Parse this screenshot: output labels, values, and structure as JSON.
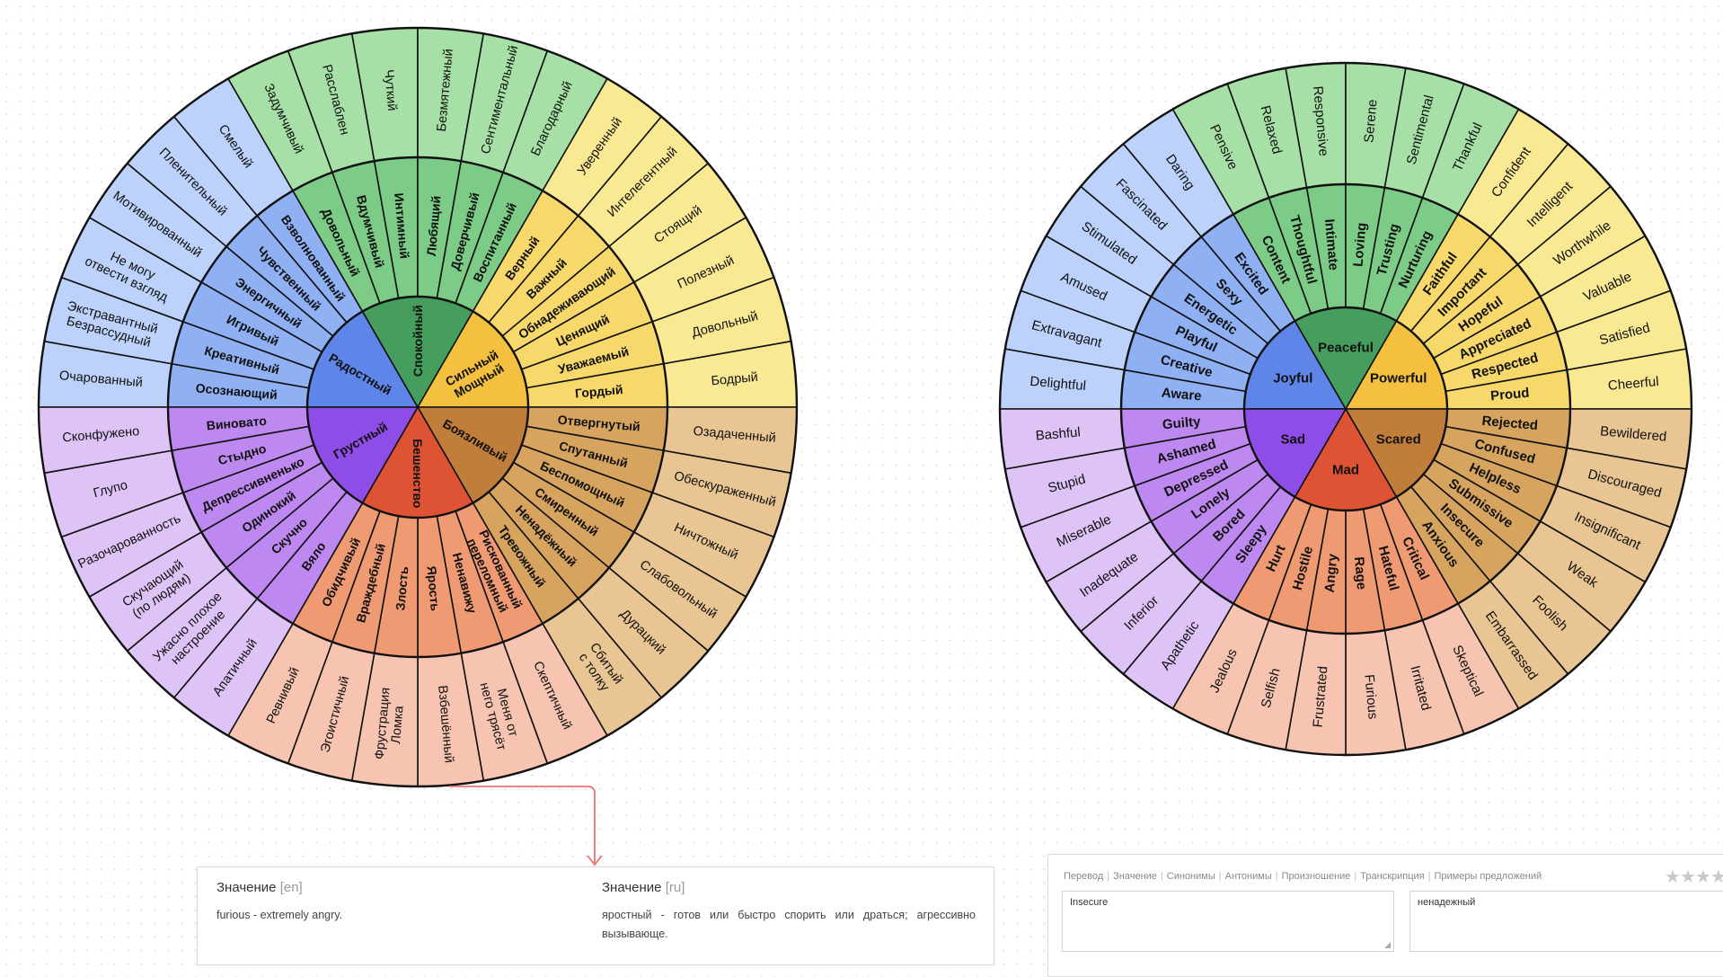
{
  "colors": {
    "Joyful": [
      "#5d86e8",
      "#8fb0f3",
      "#bcd2fa"
    ],
    "Peaceful": [
      "#459e5e",
      "#7ccb87",
      "#a6e0a6"
    ],
    "Powerful": [
      "#f3c040",
      "#f7d86a",
      "#fae993"
    ],
    "Scared": [
      "#c17e3b",
      "#d6a45f",
      "#e8c592"
    ],
    "Mad": [
      "#dd5334",
      "#ef9a73",
      "#f6c4b1"
    ],
    "Sad": [
      "#8f4de8",
      "#bd88ef",
      "#dec4f6"
    ]
  },
  "wheels": [
    {
      "id": "ru",
      "cores": [
        {
          "key": "Joyful",
          "label": "Радостный"
        },
        {
          "key": "Peaceful",
          "label": "Спокойный"
        },
        {
          "key": "Powerful",
          "label": "Сильный Мощный"
        },
        {
          "key": "Scared",
          "label": "Боязливый"
        },
        {
          "key": "Mad",
          "label": "Бешенство"
        },
        {
          "key": "Sad",
          "label": "Грустный"
        }
      ],
      "segments": [
        {
          "key": "Joyful",
          "mid": "Осознающий",
          "outer": "Очарованный"
        },
        {
          "key": "Joyful",
          "mid": "Креативный",
          "outer": "Экстравантный Безрассудный"
        },
        {
          "key": "Joyful",
          "mid": "Игривый",
          "outer": "Не могу отвести взгляд"
        },
        {
          "key": "Joyful",
          "mid": "Энергичный",
          "outer": "Мотивированный"
        },
        {
          "key": "Joyful",
          "mid": "Чувственный",
          "outer": "Пленительный"
        },
        {
          "key": "Joyful",
          "mid": "Взволнованный",
          "outer": "Смелый"
        },
        {
          "key": "Peaceful",
          "mid": "Довольный",
          "outer": "Задумчивый"
        },
        {
          "key": "Peaceful",
          "mid": "Вдумчивый",
          "outer": "Расслаблен"
        },
        {
          "key": "Peaceful",
          "mid": "Интимный",
          "outer": "Чуткий"
        },
        {
          "key": "Peaceful",
          "mid": "Любящий",
          "outer": "Безмятежный"
        },
        {
          "key": "Peaceful",
          "mid": "Доверчивый",
          "outer": "Сентиментальный"
        },
        {
          "key": "Peaceful",
          "mid": "Воспитанный",
          "outer": "Благодарный"
        },
        {
          "key": "Powerful",
          "mid": "Верный",
          "outer": "Уверенный"
        },
        {
          "key": "Powerful",
          "mid": "Важный",
          "outer": "Интелегентный"
        },
        {
          "key": "Powerful",
          "mid": "Обнадеживающий",
          "outer": "Стоящий"
        },
        {
          "key": "Powerful",
          "mid": "Ценящий",
          "outer": "Полезный"
        },
        {
          "key": "Powerful",
          "mid": "Уважаемый",
          "outer": "Довольный"
        },
        {
          "key": "Powerful",
          "mid": "Гордый",
          "outer": "Бодрый"
        },
        {
          "key": "Scared",
          "mid": "Отвергнутый",
          "outer": "Озадаченный"
        },
        {
          "key": "Scared",
          "mid": "Спутанный",
          "outer": "Обескураженный"
        },
        {
          "key": "Scared",
          "mid": "Беспомощный",
          "outer": "Ничтожный"
        },
        {
          "key": "Scared",
          "mid": "Смиренный",
          "outer": "Слабовольный"
        },
        {
          "key": "Scared",
          "mid": "Ненадёжный",
          "outer": "Дурацкий"
        },
        {
          "key": "Scared",
          "mid": "Тревожный",
          "outer": "Сбитый с толку"
        },
        {
          "key": "Mad",
          "mid": "Рискованный переломный",
          "outer": "Скептичный"
        },
        {
          "key": "Mad",
          "mid": "Ненавижу",
          "outer": "Меня от него трясёт"
        },
        {
          "key": "Mad",
          "mid": "Ярость",
          "outer": "Взбешённый"
        },
        {
          "key": "Mad",
          "mid": "Злость",
          "outer": "Фрустрация Ломка"
        },
        {
          "key": "Mad",
          "mid": "Враждебный",
          "outer": "Эгоистичный"
        },
        {
          "key": "Mad",
          "mid": "Обидчивый",
          "outer": "Ревнивый"
        },
        {
          "key": "Sad",
          "mid": "Вяло",
          "outer": "Апатичный"
        },
        {
          "key": "Sad",
          "mid": "Скучно",
          "outer": "Ужасно плохое настроение"
        },
        {
          "key": "Sad",
          "mid": "Одинокий",
          "outer": "Скучающий (по людям)"
        },
        {
          "key": "Sad",
          "mid": "Депрессивненько",
          "outer": "Разочарованность"
        },
        {
          "key": "Sad",
          "mid": "Стыдно",
          "outer": "Глупо"
        },
        {
          "key": "Sad",
          "mid": "Виновато",
          "outer": "Сконфужено"
        }
      ]
    },
    {
      "id": "en",
      "cores": [
        {
          "key": "Joyful",
          "label": "Joyful"
        },
        {
          "key": "Peaceful",
          "label": "Peaceful"
        },
        {
          "key": "Powerful",
          "label": "Powerful"
        },
        {
          "key": "Scared",
          "label": "Scared"
        },
        {
          "key": "Mad",
          "label": "Mad"
        },
        {
          "key": "Sad",
          "label": "Sad"
        }
      ],
      "segments": [
        {
          "key": "Joyful",
          "mid": "Aware",
          "outer": "Delightful"
        },
        {
          "key": "Joyful",
          "mid": "Creative",
          "outer": "Extravagant"
        },
        {
          "key": "Joyful",
          "mid": "Playful",
          "outer": "Amused"
        },
        {
          "key": "Joyful",
          "mid": "Energetic",
          "outer": "Stimulated"
        },
        {
          "key": "Joyful",
          "mid": "Sexy",
          "outer": "Fascinated"
        },
        {
          "key": "Joyful",
          "mid": "Excited",
          "outer": "Daring"
        },
        {
          "key": "Peaceful",
          "mid": "Content",
          "outer": "Pensive"
        },
        {
          "key": "Peaceful",
          "mid": "Thoughtful",
          "outer": "Relaxed"
        },
        {
          "key": "Peaceful",
          "mid": "Intimate",
          "outer": "Responsive"
        },
        {
          "key": "Peaceful",
          "mid": "Loving",
          "outer": "Serene"
        },
        {
          "key": "Peaceful",
          "mid": "Trusting",
          "outer": "Sentimental"
        },
        {
          "key": "Peaceful",
          "mid": "Nurturing",
          "outer": "Thankful"
        },
        {
          "key": "Powerful",
          "mid": "Faithful",
          "outer": "Confident"
        },
        {
          "key": "Powerful",
          "mid": "Important",
          "outer": "Intelligent"
        },
        {
          "key": "Powerful",
          "mid": "Hopeful",
          "outer": "Worthwhile"
        },
        {
          "key": "Powerful",
          "mid": "Appreciated",
          "outer": "Valuable"
        },
        {
          "key": "Powerful",
          "mid": "Respected",
          "outer": "Satisfied"
        },
        {
          "key": "Powerful",
          "mid": "Proud",
          "outer": "Cheerful"
        },
        {
          "key": "Scared",
          "mid": "Rejected",
          "outer": "Bewildered"
        },
        {
          "key": "Scared",
          "mid": "Confused",
          "outer": "Discouraged"
        },
        {
          "key": "Scared",
          "mid": "Helpless",
          "outer": "Insignificant"
        },
        {
          "key": "Scared",
          "mid": "Submissive",
          "outer": "Weak"
        },
        {
          "key": "Scared",
          "mid": "Insecure",
          "outer": "Foolish"
        },
        {
          "key": "Scared",
          "mid": "Anxious",
          "outer": "Embarrassed"
        },
        {
          "key": "Mad",
          "mid": "Critical",
          "outer": "Skeptical"
        },
        {
          "key": "Mad",
          "mid": "Hateful",
          "outer": "Irritated"
        },
        {
          "key": "Mad",
          "mid": "Rage",
          "outer": "Furious"
        },
        {
          "key": "Mad",
          "mid": "Angry",
          "outer": "Frustrated"
        },
        {
          "key": "Mad",
          "mid": "Hostile",
          "outer": "Selfish"
        },
        {
          "key": "Mad",
          "mid": "Hurt",
          "outer": "Jealous"
        },
        {
          "key": "Sad",
          "mid": "Sleepy",
          "outer": "Apathetic"
        },
        {
          "key": "Sad",
          "mid": "Bored",
          "outer": "Inferior"
        },
        {
          "key": "Sad",
          "mid": "Lonely",
          "outer": "Inadequate"
        },
        {
          "key": "Sad",
          "mid": "Depressed",
          "outer": "Miserable"
        },
        {
          "key": "Sad",
          "mid": "Ashamed",
          "outer": "Stupid"
        },
        {
          "key": "Sad",
          "mid": "Guilty",
          "outer": "Bashful"
        }
      ]
    }
  ],
  "meaning": {
    "en_title": "Значение",
    "en_lang": "[en]",
    "en_text": "furious - extremely angry.",
    "ru_title": "Значение",
    "ru_lang": "[ru]",
    "ru_text": "яростный - готов или быстро спорить или драться; агрессивно вызывающе."
  },
  "translator": {
    "tabs": [
      "Перевод",
      "Значение",
      "Синонимы",
      "Антонимы",
      "Произношение",
      "Транскрипция",
      "Примеры предложений"
    ],
    "rating_stars": 5,
    "source_text": "Insecure",
    "target_text": "ненадежный"
  }
}
